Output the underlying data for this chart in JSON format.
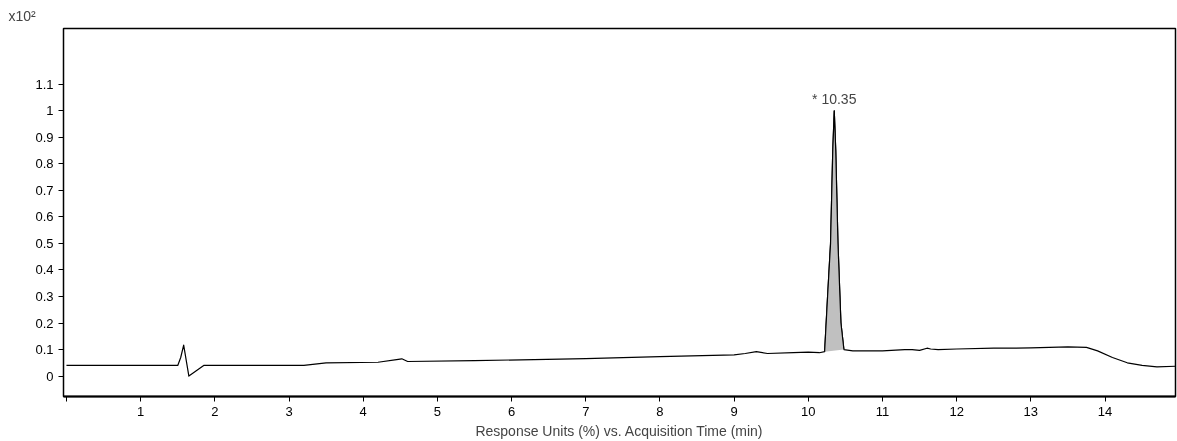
{
  "chart_data": {
    "type": "line",
    "ylabel": "x10²",
    "xlabel": "Response Units (%) vs. Acquisition Time (min)",
    "xlim": [
      -0.04,
      14.95
    ],
    "ylim": [
      -0.077,
      1.31
    ],
    "xticks": [
      {
        "value": 0,
        "label": null
      },
      1,
      2,
      3,
      4,
      5,
      6,
      7,
      8,
      9,
      10,
      11,
      12,
      13,
      14
    ],
    "yticks": [
      0,
      0.1,
      0.2,
      0.3,
      0.4,
      0.5,
      0.6,
      0.7,
      0.8,
      0.9,
      1,
      1.1
    ],
    "grid": false,
    "annotations": [
      {
        "text": "* 10.35",
        "x": 10.35,
        "y": 1.0
      }
    ],
    "series": [
      {
        "color": "#000000",
        "x": [
          0,
          1.5,
          1.54,
          1.58,
          1.62,
          1.65,
          1.75,
          1.85,
          2.5,
          3.2,
          3.5,
          4.2,
          4.45,
          4.52,
          4.6,
          5.5,
          7,
          8,
          9.0,
          9.15,
          9.3,
          9.45,
          9.8,
          10.0,
          10.15,
          10.22,
          10.26,
          10.3,
          10.33,
          10.35,
          10.37,
          10.4,
          10.44,
          10.48,
          10.6,
          11.0,
          11.3,
          11.4,
          11.5,
          11.6,
          11.65,
          11.75,
          12.0,
          12.5,
          13.0,
          13.5,
          13.75,
          13.9,
          14.1,
          14.3,
          14.5,
          14.7,
          14.95
        ],
        "values": [
          0.04,
          0.04,
          0.07,
          0.117,
          0.05,
          0.0,
          0.02,
          0.04,
          0.04,
          0.04,
          0.05,
          0.052,
          0.062,
          0.065,
          0.055,
          0.058,
          0.066,
          0.073,
          0.08,
          0.085,
          0.092,
          0.085,
          0.088,
          0.09,
          0.088,
          0.092,
          0.3,
          0.5,
          0.85,
          1.0,
          0.85,
          0.5,
          0.2,
          0.1,
          0.095,
          0.095,
          0.1,
          0.1,
          0.097,
          0.105,
          0.102,
          0.1,
          0.102,
          0.105,
          0.106,
          0.11,
          0.108,
          0.095,
          0.07,
          0.05,
          0.04,
          0.035,
          0.037
        ]
      },
      {
        "type": "area",
        "color": "#c0c0c0",
        "x": [
          10.22,
          10.26,
          10.3,
          10.33,
          10.35,
          10.37,
          10.4,
          10.44,
          10.48
        ],
        "values": [
          0.092,
          0.3,
          0.5,
          0.85,
          1.0,
          0.85,
          0.5,
          0.2,
          0.1
        ]
      }
    ]
  }
}
